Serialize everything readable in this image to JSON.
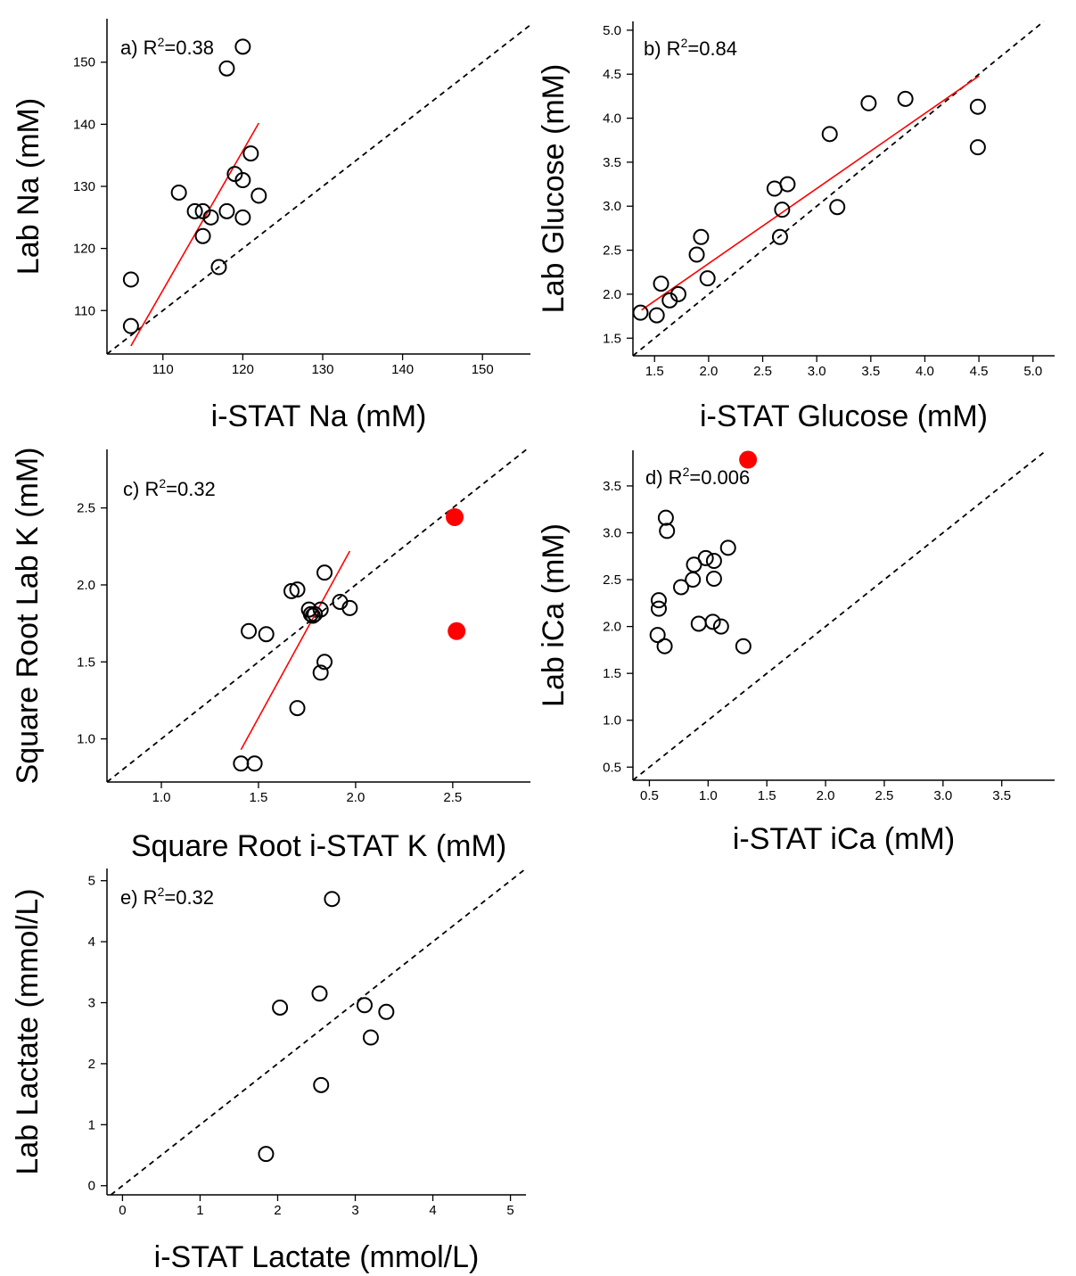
{
  "chart_data": [
    {
      "id": "a",
      "type": "scatter",
      "annotation": {
        "prefix": "a) R",
        "sup": "2",
        "suffix": "=0.38"
      },
      "xlabel": "i-STAT Na (mM)",
      "ylabel": "Lab Na (mM)",
      "xlim": [
        103,
        156
      ],
      "ylim": [
        103,
        157
      ],
      "xticks": [
        110,
        120,
        130,
        140,
        150
      ],
      "yticks": [
        110,
        120,
        130,
        140,
        150
      ],
      "tick_decimals": 0,
      "identity_line": true,
      "fit_line": {
        "x": [
          106,
          122
        ],
        "y": [
          104.3,
          140.2
        ]
      },
      "series": [
        {
          "marker": "open-circle",
          "x": [
            106,
            106,
            112,
            114,
            115,
            115,
            116,
            117,
            118,
            118,
            119,
            120,
            120,
            120,
            121,
            122
          ],
          "y": [
            115,
            107.5,
            129,
            126,
            126,
            122,
            125,
            117,
            149,
            126,
            132,
            131,
            125,
            152.5,
            135.3,
            128.5
          ]
        }
      ]
    },
    {
      "id": "b",
      "type": "scatter",
      "annotation": {
        "prefix": "b) R",
        "sup": "2",
        "suffix": "=0.84"
      },
      "xlabel": "i-STAT Glucose (mM)",
      "ylabel": "Lab Glucose (mM)",
      "xlim": [
        1.3,
        5.2
      ],
      "ylim": [
        1.3,
        5.1
      ],
      "xticks": [
        1.5,
        2.0,
        2.5,
        3.0,
        3.5,
        4.0,
        4.5,
        5.0
      ],
      "yticks": [
        1.5,
        2.0,
        2.5,
        3.0,
        3.5,
        4.0,
        4.5,
        5.0
      ],
      "tick_decimals": 1,
      "identity_line": true,
      "fit_line": {
        "x": [
          1.38,
          4.5
        ],
        "y": [
          1.82,
          4.48
        ]
      },
      "series": [
        {
          "marker": "open-circle",
          "x": [
            1.37,
            1.52,
            1.56,
            1.64,
            1.72,
            1.89,
            1.93,
            1.99,
            2.61,
            2.66,
            2.68,
            2.73,
            3.12,
            3.19,
            3.48,
            3.82,
            4.49,
            4.49
          ],
          "y": [
            1.79,
            1.76,
            2.12,
            1.93,
            2.0,
            2.45,
            2.65,
            2.18,
            3.2,
            2.65,
            2.96,
            3.25,
            3.82,
            2.99,
            4.17,
            4.22,
            4.13,
            3.67
          ]
        }
      ]
    },
    {
      "id": "c",
      "type": "scatter",
      "annotation": {
        "prefix": "c) R",
        "sup": "2",
        "suffix": "=0.32"
      },
      "xlabel": "Square Root i-STAT K (mM)",
      "ylabel": "Square Root Lab K (mM)",
      "xlim": [
        0.72,
        2.9
      ],
      "ylim": [
        0.72,
        2.88
      ],
      "xticks": [
        1.0,
        1.5,
        2.0,
        2.5
      ],
      "yticks": [
        1.0,
        1.5,
        2.0,
        2.5
      ],
      "tick_decimals": 1,
      "identity_line": true,
      "fit_line": {
        "x": [
          1.41,
          1.97
        ],
        "y": [
          0.93,
          2.22
        ]
      },
      "series": [
        {
          "marker": "open-circle",
          "x": [
            1.41,
            1.45,
            1.48,
            1.54,
            1.67,
            1.7,
            1.7,
            1.76,
            1.77,
            1.78,
            1.79,
            1.82,
            1.82,
            1.84,
            1.84,
            1.92,
            1.97
          ],
          "y": [
            0.84,
            1.7,
            0.84,
            1.68,
            1.96,
            1.97,
            1.2,
            1.84,
            1.81,
            1.8,
            1.81,
            1.84,
            1.43,
            1.5,
            2.08,
            1.89,
            1.85
          ]
        },
        {
          "marker": "filled-red",
          "x": [
            2.51,
            2.52
          ],
          "y": [
            2.44,
            1.7
          ]
        }
      ]
    },
    {
      "id": "d",
      "type": "scatter",
      "annotation": {
        "prefix": "d) R",
        "sup": "2",
        "suffix": "=0.006"
      },
      "xlabel": "i-STAT iCa (mM)",
      "ylabel": "Lab iCa (mM)",
      "xlim": [
        0.36,
        3.95
      ],
      "ylim": [
        0.36,
        3.88
      ],
      "xticks": [
        0.5,
        1.0,
        1.5,
        2.0,
        2.5,
        3.0,
        3.5
      ],
      "yticks": [
        0.5,
        1.0,
        1.5,
        2.0,
        2.5,
        3.0,
        3.5
      ],
      "tick_decimals": 1,
      "identity_line": true,
      "fit_line": null,
      "series": [
        {
          "marker": "open-circle",
          "x": [
            0.57,
            0.58,
            0.58,
            0.63,
            0.64,
            0.65,
            0.77,
            0.87,
            0.88,
            0.92,
            0.98,
            1.04,
            1.05,
            1.05,
            1.11,
            1.17,
            1.3
          ],
          "y": [
            1.91,
            2.19,
            2.28,
            1.79,
            3.16,
            3.02,
            2.42,
            2.5,
            2.66,
            2.03,
            2.73,
            2.05,
            2.51,
            2.7,
            2.0,
            2.84,
            1.79
          ]
        },
        {
          "marker": "filled-red",
          "x": [
            1.34
          ],
          "y": [
            3.78
          ]
        }
      ]
    },
    {
      "id": "e",
      "type": "scatter",
      "annotation": {
        "prefix": "e) R",
        "sup": "2",
        "suffix": "=0.32"
      },
      "xlabel": "i-STAT Lactate (mmol/L)",
      "ylabel": "Lab Lactate (mmol/L)",
      "xlim": [
        -0.2,
        5.2
      ],
      "ylim": [
        -0.15,
        5.2
      ],
      "xticks": [
        0,
        1,
        2,
        3,
        4,
        5
      ],
      "yticks": [
        0,
        1,
        2,
        3,
        4,
        5
      ],
      "tick_decimals": 0,
      "identity_line": true,
      "fit_line": null,
      "series": [
        {
          "marker": "open-circle",
          "x": [
            1.85,
            2.03,
            2.54,
            2.56,
            2.7,
            3.12,
            3.2,
            3.4
          ],
          "y": [
            0.52,
            2.92,
            3.15,
            1.65,
            4.7,
            2.96,
            2.43,
            2.85
          ]
        }
      ]
    }
  ]
}
